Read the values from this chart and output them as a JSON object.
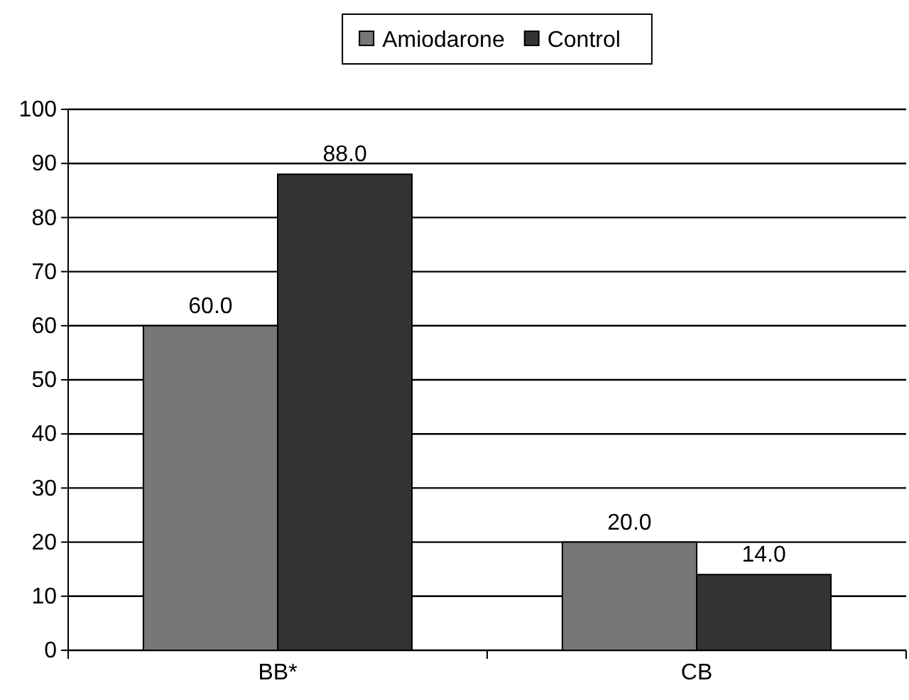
{
  "chart_data": {
    "type": "bar",
    "categories": [
      "BB*",
      "CB"
    ],
    "series": [
      {
        "name": "Amiodarone",
        "color": "#777777",
        "values": [
          60,
          20
        ],
        "value_labels": [
          "60.0",
          "20.0"
        ]
      },
      {
        "name": "Control",
        "color": "#333333",
        "values": [
          88,
          14
        ],
        "value_labels": [
          "88.0",
          "14.0"
        ]
      }
    ],
    "ylim": [
      0,
      100
    ],
    "yticks": [
      0,
      10,
      20,
      30,
      40,
      50,
      60,
      70,
      80,
      90,
      100
    ],
    "grid": "y",
    "legend": "top"
  }
}
